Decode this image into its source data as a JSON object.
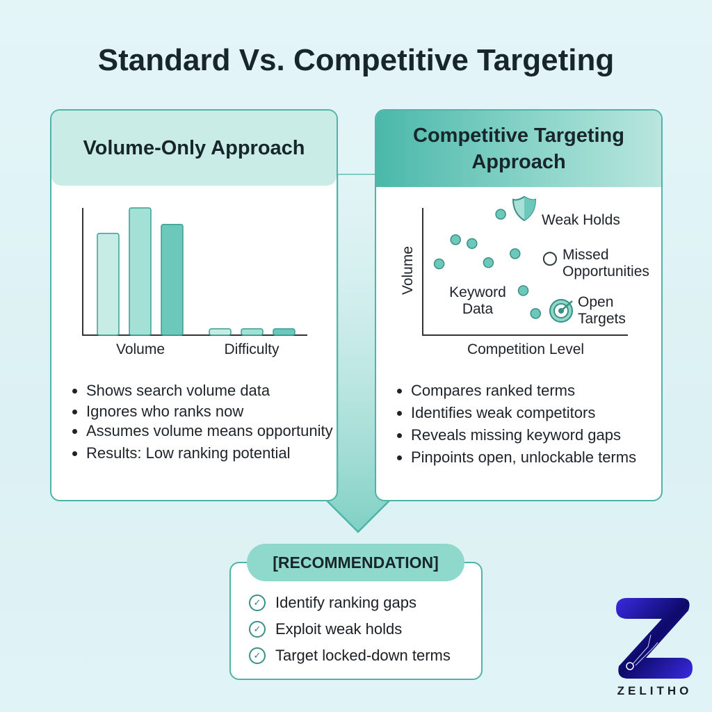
{
  "title": "Standard Vs. Competitive Targeting",
  "left": {
    "header": "Volume-Only Approach",
    "bullets": [
      "Shows search volume data",
      "Ignores who ranks now",
      "Assumes volume means opportunity",
      "Results: Low ranking potential"
    ]
  },
  "right": {
    "header": "Competitive Targeting Approach",
    "bullets": [
      "Compares ranked terms",
      "Identifies weak competitors",
      "Reveals missing keyword gaps",
      "Pinpoints open, unlockable terms"
    ],
    "labels": {
      "weak": "Weak Holds",
      "missed": "Missed Opportunities",
      "keyword": "Keyword Data",
      "open": "Open Targets"
    }
  },
  "chart_data": [
    {
      "type": "bar",
      "categories": [
        "Volume",
        "Difficulty"
      ],
      "series": [
        {
          "values": [
            80,
            5
          ]
        },
        {
          "values": [
            100,
            5
          ]
        },
        {
          "values": [
            87,
            5
          ]
        }
      ],
      "colors": [
        "#c6ece5",
        "#a3e0d6",
        "#6cc8bb"
      ]
    },
    {
      "type": "scatter",
      "xlabel": "Competition Level",
      "ylabel": "Volume",
      "points": [
        [
          38,
          95
        ],
        [
          16,
          75
        ],
        [
          24,
          72
        ],
        [
          8,
          56
        ],
        [
          32,
          57
        ],
        [
          45,
          64
        ],
        [
          49,
          35
        ],
        [
          55,
          17
        ]
      ],
      "missed": [
        [
          62,
          60
        ]
      ],
      "open": [
        [
          70,
          21
        ]
      ],
      "weak": [
        [
          52,
          95
        ]
      ]
    }
  ],
  "recommendation": {
    "label": "[RECOMMENDATION]",
    "items": [
      "Identify ranking gaps",
      "Exploit weak holds",
      "Target locked-down terms"
    ]
  },
  "logo": {
    "text": "ZELITHO"
  },
  "colors": {
    "accent": "#4fb3a7",
    "dot": "#6cc8bb",
    "logo": "#2a1fc9"
  }
}
